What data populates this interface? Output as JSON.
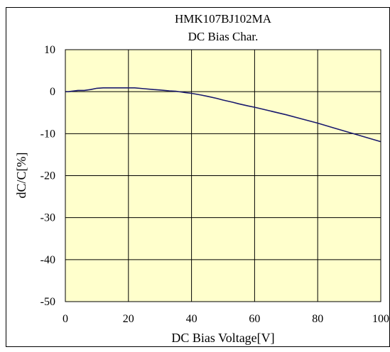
{
  "colors": {
    "plot_background": "#ffffcc",
    "series_line": "#1a1a6e",
    "grid": "#000000",
    "frame": "#000000"
  },
  "chart_data": {
    "type": "line",
    "title": "HMK107BJ102MA",
    "subtitle": "DC Bias Char.",
    "xlabel": "DC Bias Voltage[V]",
    "ylabel": "dC/C[%]",
    "xlim": [
      0,
      100
    ],
    "ylim": [
      -50,
      10
    ],
    "xticks": [
      0,
      20,
      40,
      60,
      80,
      100
    ],
    "yticks": [
      10,
      0,
      -10,
      -20,
      -30,
      -40,
      -50
    ],
    "grid": true,
    "legend": "none",
    "series": [
      {
        "x": [
          0,
          1,
          2,
          4,
          6,
          8,
          10,
          12,
          15,
          18,
          20,
          22,
          25,
          28,
          30,
          33,
          35,
          38,
          40,
          43,
          45,
          48,
          50,
          53,
          55,
          58,
          60,
          65,
          70,
          75,
          80,
          85,
          90,
          95,
          100
        ],
        "values": [
          0,
          0,
          0.1,
          0.3,
          0.3,
          0.5,
          0.8,
          0.9,
          0.9,
          0.9,
          0.9,
          0.9,
          0.7,
          0.5,
          0.4,
          0.2,
          0.1,
          -0.2,
          -0.4,
          -0.8,
          -1.1,
          -1.6,
          -2.0,
          -2.5,
          -2.9,
          -3.4,
          -3.7,
          -4.6,
          -5.5,
          -6.5,
          -7.5,
          -8.6,
          -9.7,
          -10.8,
          -11.9
        ]
      }
    ]
  }
}
